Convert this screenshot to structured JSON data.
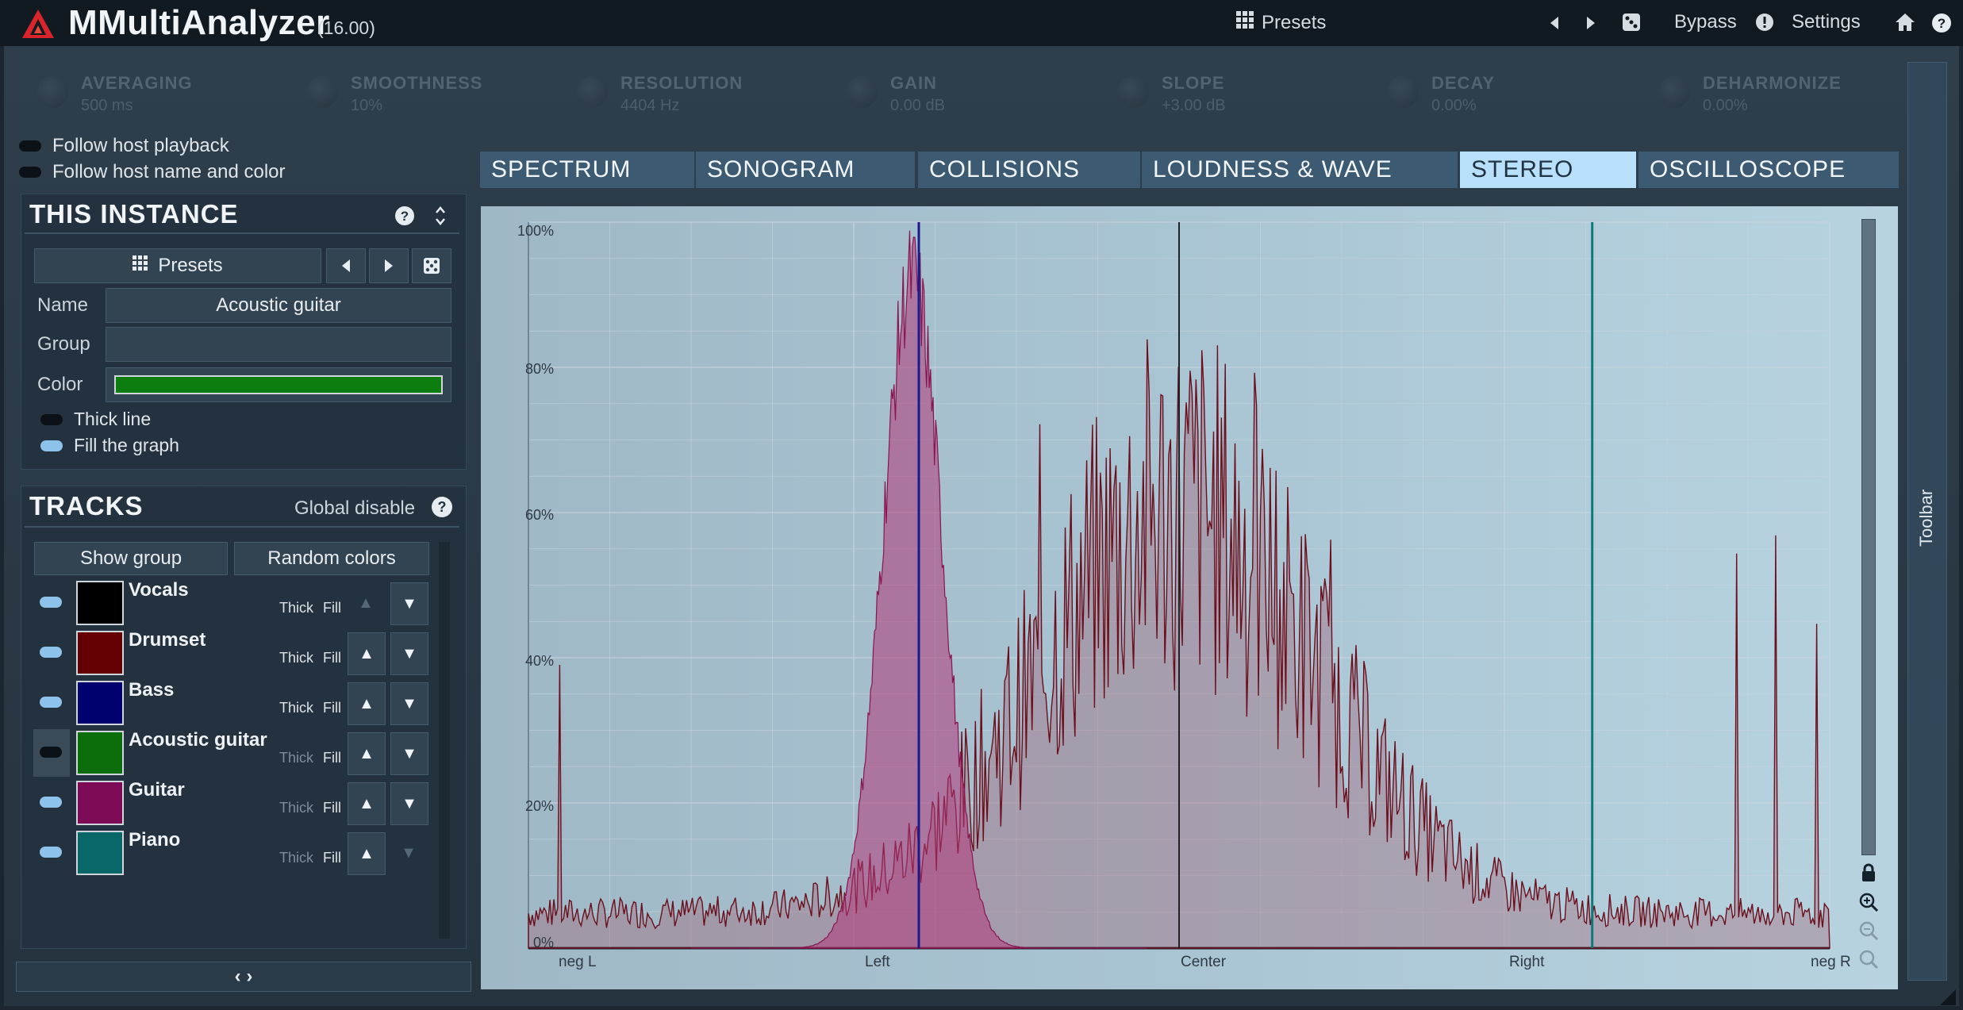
{
  "app": {
    "title": "MMultiAnalyzer",
    "version": "(16.00)"
  },
  "topbar": {
    "presets": "Presets",
    "bypass": "Bypass",
    "settings": "Settings"
  },
  "knobs": [
    {
      "name": "AVERAGING",
      "value": "500 ms"
    },
    {
      "name": "SMOOTHNESS",
      "value": "10%"
    },
    {
      "name": "RESOLUTION",
      "value": "4404 Hz"
    },
    {
      "name": "GAIN",
      "value": "0.00 dB"
    },
    {
      "name": "SLOPE",
      "value": "+3.00 dB"
    },
    {
      "name": "DECAY",
      "value": "0.00%"
    },
    {
      "name": "DEHARMONIZE",
      "value": "0.00%"
    }
  ],
  "follow": {
    "playback": "Follow host playback",
    "name_color": "Follow host name and color"
  },
  "instance": {
    "title": "THIS INSTANCE",
    "presets": "Presets",
    "name_label": "Name",
    "name_value": "Acoustic guitar",
    "group_label": "Group",
    "group_value": "",
    "color_label": "Color",
    "color_value": "#0e7d10",
    "thick_line": "Thick line",
    "fill_graph": "Fill the graph"
  },
  "tracks": {
    "title": "TRACKS",
    "global_disable": "Global disable",
    "show_group": "Show group",
    "random_colors": "Random colors",
    "thick": "Thick",
    "fill": "Fill",
    "items": [
      {
        "name": "Vocals",
        "color": "#000000"
      },
      {
        "name": "Drumset",
        "color": "#650000"
      },
      {
        "name": "Bass",
        "color": "#00006e"
      },
      {
        "name": "Acoustic guitar",
        "color": "#0b6e0b"
      },
      {
        "name": "Guitar",
        "color": "#7d0b55"
      },
      {
        "name": "Piano",
        "color": "#0a6767"
      }
    ]
  },
  "tabs": [
    "SPECTRUM",
    "SONOGRAM",
    "COLLISIONS",
    "LOUDNESS & WAVE",
    "STEREO",
    "OSCILLOSCOPE"
  ],
  "active_tab": "STEREO",
  "sidebar": {
    "toolbar": "Toolbar"
  },
  "chart_data": {
    "type": "area",
    "y_ticks": [
      "100%",
      "80%",
      "60%",
      "40%",
      "20%",
      "0%"
    ],
    "x_ticks": [
      "neg L",
      "Left",
      "Center",
      "Right",
      "neg R"
    ],
    "ylim": [
      0,
      100
    ],
    "xlim": [
      -2,
      2
    ],
    "series": [
      {
        "name": "Guitar",
        "color": "#a0306a",
        "peak_x": -0.82,
        "peak": 100
      },
      {
        "name": "Drumset",
        "color": "#7a1a20",
        "peak_x": 0.0,
        "peak": 100
      },
      {
        "name": "Bass",
        "color": "#1a1a8a",
        "peak_x": -0.8,
        "peak": 100
      },
      {
        "name": "Vocals",
        "color": "#222222",
        "peak_x": 0.0,
        "peak": 100
      },
      {
        "name": "Piano",
        "color": "#0a7a7a",
        "peak_x": 1.27,
        "peak": 100
      }
    ]
  }
}
